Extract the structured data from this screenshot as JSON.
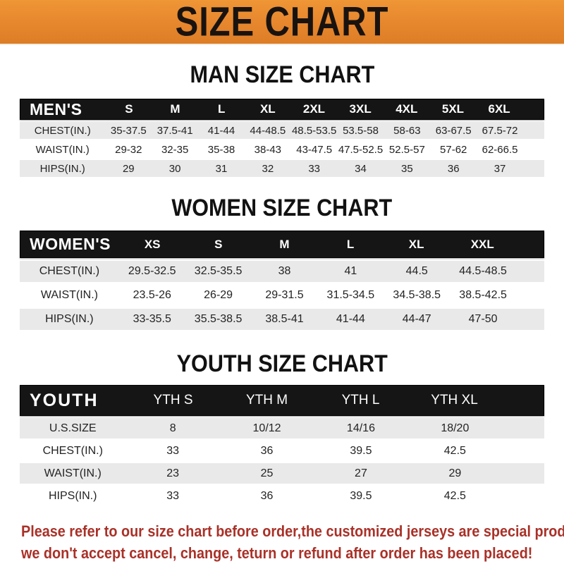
{
  "banner": {
    "title": "SIZE CHART",
    "bg_color": "#e6862d",
    "text_color": "#191310"
  },
  "colors": {
    "table_header_bg": "#151515",
    "table_header_text": "#ffffff",
    "row_stripe_gray": "#e9e9e9",
    "footer_red": "#a93128"
  },
  "sections": [
    {
      "id": "men",
      "heading": "MAN SIZE CHART",
      "corner_label": "MEN'S",
      "size_columns": [
        "S",
        "M",
        "L",
        "XL",
        "2XL",
        "3XL",
        "4XL",
        "5XL",
        "6XL"
      ],
      "rows": [
        {
          "label": "CHEST(IN.)",
          "values": [
            "35-37.5",
            "37.5-41",
            "41-44",
            "44-48.5",
            "48.5-53.5",
            "53.5-58",
            "58-63",
            "63-67.5",
            "67.5-72"
          ]
        },
        {
          "label": "WAIST(IN.)",
          "values": [
            "29-32",
            "32-35",
            "35-38",
            "38-43",
            "43-47.5",
            "47.5-52.5",
            "52.5-57",
            "57-62",
            "62-66.5"
          ]
        },
        {
          "label": "HIPS(IN.)",
          "values": [
            "29",
            "30",
            "31",
            "32",
            "33",
            "34",
            "35",
            "36",
            "37"
          ]
        }
      ]
    },
    {
      "id": "women",
      "heading": "WOMEN SIZE CHART",
      "corner_label": "WOMEN'S",
      "size_columns": [
        "XS",
        "S",
        "M",
        "L",
        "XL",
        "XXL"
      ],
      "rows": [
        {
          "label": "CHEST(IN.)",
          "values": [
            "29.5-32.5",
            "32.5-35.5",
            "38",
            "41",
            "44.5",
            "44.5-48.5"
          ]
        },
        {
          "label": "WAIST(IN.)",
          "values": [
            "23.5-26",
            "26-29",
            "29-31.5",
            "31.5-34.5",
            "34.5-38.5",
            "38.5-42.5"
          ]
        },
        {
          "label": "HIPS(IN.)",
          "values": [
            "33-35.5",
            "35.5-38.5",
            "38.5-41",
            "41-44",
            "44-47",
            "47-50"
          ]
        }
      ]
    },
    {
      "id": "youth",
      "heading": "YOUTH SIZE CHART",
      "corner_label": "YOUTH",
      "size_columns": [
        "YTH S",
        "YTH M",
        "YTH L",
        "YTH XL"
      ],
      "rows": [
        {
          "label": "U.S.SIZE",
          "values": [
            "8",
            "10/12",
            "14/16",
            "18/20"
          ]
        },
        {
          "label": "CHEST(IN.)",
          "values": [
            "33",
            "36",
            "39.5",
            "42.5"
          ]
        },
        {
          "label": "WAIST(IN.)",
          "values": [
            "23",
            "25",
            "27",
            "29"
          ]
        },
        {
          "label": "HIPS(IN.)",
          "values": [
            "33",
            "36",
            "39.5",
            "42.5"
          ]
        }
      ]
    }
  ],
  "footer": {
    "lines": [
      "Please refer to our size chart before order,the customized jerseys are special products,",
      "we don't accept cancel, change, teturn or refund after order has been placed!"
    ]
  }
}
